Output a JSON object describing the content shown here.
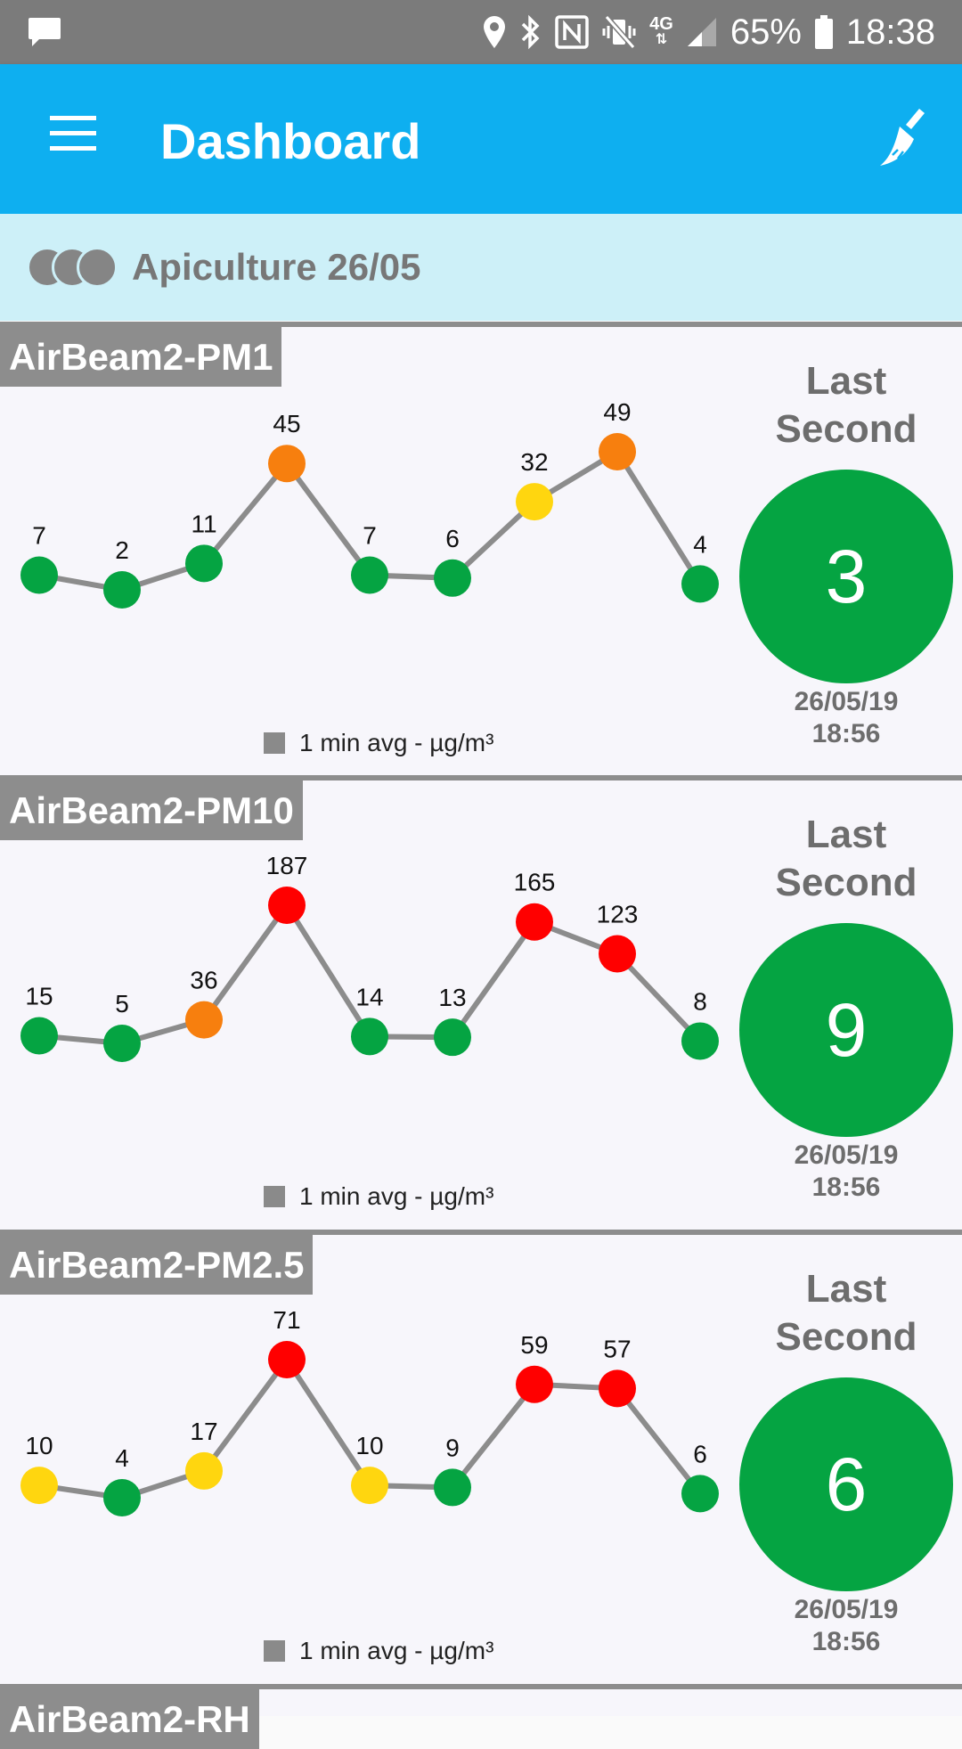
{
  "status_bar": {
    "battery": "65%",
    "time": "18:38",
    "network": "4G",
    "icons": [
      "chat-notification-icon",
      "location-icon",
      "bluetooth-icon",
      "nfc-icon",
      "vibrate-icon",
      "signal-icon",
      "battery-icon"
    ]
  },
  "app_bar": {
    "title": "Dashboard",
    "menu_icon": "hamburger-menu-icon",
    "action_icon": "broom-clear-icon",
    "color": "#0eaff0"
  },
  "session": {
    "name": "Apiculture 26/05"
  },
  "colors": {
    "green": "#05a442",
    "yellow": "#ffd60f",
    "orange": "#f77f0e",
    "red": "#ff0000",
    "line": "#8c8c8c"
  },
  "streams": [
    {
      "label": "AirBeam2-PM1",
      "last_second_label": "Last Second",
      "last_value": "3",
      "date": "26/05/19",
      "time": "18:56",
      "legend": "1 min avg - µg/m³",
      "chart_data": {
        "type": "line",
        "values": [
          7,
          2,
          11,
          45,
          7,
          6,
          32,
          49,
          4
        ],
        "point_colors": [
          "green",
          "green",
          "green",
          "orange",
          "green",
          "green",
          "yellow",
          "orange",
          "green"
        ]
      }
    },
    {
      "label": "AirBeam2-PM10",
      "last_second_label": "Last Second",
      "last_value": "9",
      "date": "26/05/19",
      "time": "18:56",
      "legend": "1 min avg - µg/m³",
      "chart_data": {
        "type": "line",
        "values": [
          15,
          5,
          36,
          187,
          14,
          13,
          165,
          123,
          8
        ],
        "point_colors": [
          "green",
          "green",
          "orange",
          "red",
          "green",
          "green",
          "red",
          "red",
          "green"
        ]
      }
    },
    {
      "label": "AirBeam2-PM2.5",
      "last_second_label": "Last Second",
      "last_value": "6",
      "date": "26/05/19",
      "time": "18:56",
      "legend": "1 min avg - µg/m³",
      "chart_data": {
        "type": "line",
        "values": [
          10,
          4,
          17,
          71,
          10,
          9,
          59,
          57,
          6
        ],
        "point_colors": [
          "yellow",
          "green",
          "yellow",
          "red",
          "yellow",
          "green",
          "red",
          "red",
          "green"
        ]
      }
    }
  ],
  "next_stream_label": "AirBeam2-RH"
}
